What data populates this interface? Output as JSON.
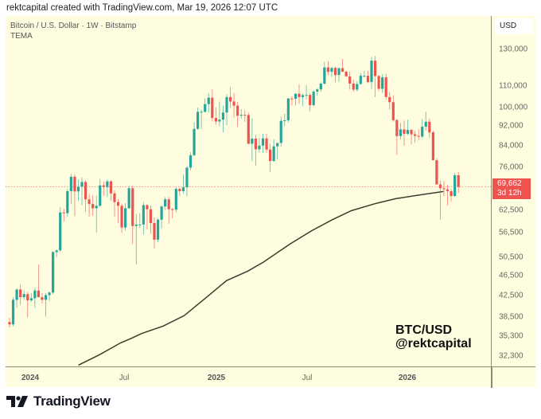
{
  "header": {
    "text": "rektcapital created with TradingView.com, Mar 19, 2026 12:07 UTC"
  },
  "legend": {
    "symbol_line": "Bitcoin / U.S. Dollar · 1W · Bitstamp",
    "indicator": "TEMA"
  },
  "axis": {
    "currency": "USD",
    "y_ticks": [
      "130,000",
      "110,000",
      "100,000",
      "92,000",
      "84,000",
      "76,000",
      "62,500",
      "56,500",
      "50,500",
      "46,500",
      "42,500",
      "38,500",
      "35,300",
      "32,300"
    ],
    "x_ticks": [
      {
        "label": "2024",
        "major": true
      },
      {
        "label": "Jul",
        "major": false
      },
      {
        "label": "2025",
        "major": true
      },
      {
        "label": "Jul",
        "major": false
      },
      {
        "label": "2026",
        "major": true
      }
    ]
  },
  "last_price": {
    "value": "69,662",
    "countdown": "3d 12h"
  },
  "watermark": {
    "line1": "BTC/USD",
    "line2": "@rektcapital"
  },
  "brand": {
    "name": "TradingView"
  },
  "colors": {
    "up": "#26a69a",
    "down": "#ef5350",
    "background": "#fffde0",
    "tema": "#3b3b2e",
    "last_price_line": "#ef5350"
  },
  "chart_data": {
    "type": "candlestick",
    "title": "Bitcoin / U.S. Dollar · 1W · Bitstamp",
    "xlabel": "",
    "ylabel": "USD",
    "y_scale": "log",
    "ylim": [
      31000,
      140000
    ],
    "x_range": [
      "2023-12",
      "2026-03"
    ],
    "legend": [
      "TEMA"
    ],
    "grid": false,
    "last_price": 69662,
    "candles_ohlc": [
      [
        37700,
        38400,
        36800,
        37300
      ],
      [
        37300,
        42200,
        37000,
        41700
      ],
      [
        41700,
        43900,
        40200,
        43700
      ],
      [
        43700,
        44700,
        40800,
        42200
      ],
      [
        42200,
        43500,
        41700,
        42800
      ],
      [
        42800,
        43200,
        38500,
        41600
      ],
      [
        41600,
        43000,
        41300,
        42000
      ],
      [
        42000,
        44000,
        40200,
        43500
      ],
      [
        43500,
        48900,
        42300,
        42200
      ],
      [
        42200,
        43000,
        41000,
        41700
      ],
      [
        41700,
        43000,
        38600,
        42600
      ],
      [
        42600,
        43300,
        41500,
        43100
      ],
      [
        43100,
        52000,
        42800,
        51800
      ],
      [
        51800,
        52400,
        50600,
        52200
      ],
      [
        52200,
        63500,
        51900,
        62000
      ],
      [
        62000,
        63000,
        59500,
        61800
      ],
      [
        61800,
        69000,
        60800,
        68300
      ],
      [
        68300,
        73800,
        64500,
        72900
      ],
      [
        72900,
        73700,
        61000,
        68200
      ],
      [
        68200,
        72000,
        65300,
        69700
      ],
      [
        69700,
        72700,
        64000,
        71200
      ],
      [
        71200,
        71800,
        62200,
        65800
      ],
      [
        65800,
        67500,
        60800,
        64400
      ],
      [
        64400,
        67000,
        61100,
        63200
      ],
      [
        63200,
        67000,
        56600,
        63900
      ],
      [
        63900,
        72200,
        63600,
        70100
      ],
      [
        70100,
        71400,
        66800,
        69600
      ],
      [
        69600,
        72000,
        66500,
        71400
      ],
      [
        71400,
        71800,
        65400,
        67600
      ],
      [
        67600,
        68600,
        60900,
        65000
      ],
      [
        65000,
        65900,
        59000,
        63900
      ],
      [
        63900,
        64500,
        56500,
        57900
      ],
      [
        57900,
        64700,
        57100,
        63200
      ],
      [
        63200,
        70000,
        63000,
        69200
      ],
      [
        69200,
        70000,
        53700,
        58300
      ],
      [
        58300,
        61600,
        49000,
        58700
      ],
      [
        58700,
        61800,
        57800,
        58700
      ],
      [
        58700,
        65000,
        56100,
        64100
      ],
      [
        64100,
        64400,
        57400,
        62900
      ],
      [
        62900,
        64000,
        56300,
        59100
      ],
      [
        59100,
        60600,
        52600,
        54800
      ],
      [
        54800,
        60400,
        54100,
        60000
      ],
      [
        60000,
        64100,
        57600,
        63700
      ],
      [
        63700,
        66500,
        62700,
        65800
      ],
      [
        65800,
        66500,
        58900,
        62900
      ],
      [
        62900,
        63300,
        60400,
        62800
      ],
      [
        62800,
        69500,
        62000,
        69000
      ],
      [
        69000,
        69400,
        66800,
        68300
      ],
      [
        68300,
        73600,
        67500,
        69500
      ],
      [
        69500,
        76500,
        66800,
        76000
      ],
      [
        76000,
        81500,
        75000,
        80400
      ],
      [
        80400,
        93400,
        80100,
        90600
      ],
      [
        90600,
        99800,
        90400,
        97900
      ],
      [
        97900,
        98900,
        90700,
        97900
      ],
      [
        97900,
        104100,
        97700,
        101400
      ],
      [
        101400,
        106500,
        97600,
        104400
      ],
      [
        104400,
        108300,
        93800,
        95200
      ],
      [
        95200,
        99900,
        92300,
        93700
      ],
      [
        93700,
        102600,
        91800,
        94500
      ],
      [
        94500,
        100700,
        89200,
        97600
      ],
      [
        97600,
        106000,
        92200,
        104700
      ],
      [
        104700,
        109600,
        99600,
        102600
      ],
      [
        102600,
        106700,
        95400,
        100700
      ],
      [
        100700,
        102400,
        91400,
        96200
      ],
      [
        96200,
        99100,
        94900,
        96600
      ],
      [
        96600,
        98700,
        93600,
        96500
      ],
      [
        96500,
        97600,
        84500,
        84700
      ],
      [
        84700,
        95000,
        78200,
        86700
      ],
      [
        86700,
        88200,
        76700,
        82600
      ],
      [
        82600,
        87000,
        81400,
        84000
      ],
      [
        84000,
        88600,
        81300,
        86800
      ],
      [
        86800,
        88700,
        81200,
        82500
      ],
      [
        82500,
        84700,
        74500,
        78300
      ],
      [
        78300,
        86400,
        78100,
        83700
      ],
      [
        83700,
        85000,
        79000,
        85000
      ],
      [
        85000,
        95800,
        83600,
        94000
      ],
      [
        94000,
        97000,
        91800,
        94200
      ],
      [
        94200,
        104300,
        93300,
        104000
      ],
      [
        104000,
        105000,
        100700,
        103900
      ],
      [
        103900,
        106500,
        100700,
        106300
      ],
      [
        106300,
        110900,
        101600,
        104700
      ],
      [
        104700,
        106300,
        100400,
        105600
      ],
      [
        105600,
        110400,
        103700,
        105700
      ],
      [
        105700,
        106500,
        98200,
        100900
      ],
      [
        100900,
        108200,
        100400,
        107300
      ],
      [
        107300,
        109000,
        105300,
        108400
      ],
      [
        108400,
        112000,
        107300,
        111300
      ],
      [
        111300,
        123000,
        110700,
        119800
      ],
      [
        119800,
        123200,
        115700,
        117400
      ],
      [
        117400,
        120000,
        114700,
        119500
      ],
      [
        119500,
        120200,
        111900,
        115700
      ],
      [
        115700,
        119800,
        112200,
        119400
      ],
      [
        119400,
        124500,
        117200,
        117500
      ],
      [
        117500,
        118000,
        114700,
        115000
      ],
      [
        115000,
        117600,
        108300,
        111300
      ],
      [
        111300,
        113400,
        107300,
        108300
      ],
      [
        108300,
        112600,
        107400,
        111100
      ],
      [
        111100,
        116800,
        110600,
        115300
      ],
      [
        115300,
        117900,
        114600,
        115300
      ],
      [
        115300,
        118000,
        111500,
        112100
      ],
      [
        112100,
        125600,
        108700,
        123500
      ],
      [
        123500,
        126200,
        104700,
        115200
      ],
      [
        115200,
        115800,
        107500,
        108700
      ],
      [
        108700,
        116100,
        106700,
        114500
      ],
      [
        114500,
        116400,
        103500,
        104700
      ],
      [
        104700,
        107200,
        98900,
        102300
      ],
      [
        102300,
        105500,
        93600,
        94300
      ],
      [
        94300,
        94900,
        80500,
        87700
      ],
      [
        87700,
        93100,
        86300,
        90400
      ],
      [
        90400,
        94100,
        84000,
        88600
      ],
      [
        88600,
        94500,
        88000,
        90200
      ],
      [
        90200,
        90600,
        84500,
        88400
      ],
      [
        88400,
        89800,
        85100,
        87800
      ],
      [
        87800,
        90500,
        86100,
        87500
      ],
      [
        87500,
        94800,
        86900,
        91500
      ],
      [
        91500,
        97900,
        90000,
        93600
      ],
      [
        93600,
        95000,
        86900,
        89200
      ],
      [
        89200,
        89900,
        81000,
        78600
      ],
      [
        78600,
        79300,
        74500,
        70400
      ],
      [
        70400,
        71600,
        60000,
        69200
      ],
      [
        69200,
        71500,
        66800,
        68900
      ],
      [
        68900,
        70300,
        64000,
        68300
      ],
      [
        68300,
        69000,
        65200,
        66800
      ],
      [
        66800,
        74200,
        66600,
        73400
      ],
      [
        73400,
        74600,
        67800,
        69662
      ]
    ],
    "tema_series_approx": [
      [
        0,
        31000
      ],
      [
        20,
        32500
      ],
      [
        40,
        34300
      ],
      [
        50,
        35000
      ],
      [
        60,
        35800
      ],
      [
        80,
        37000
      ],
      [
        100,
        38800
      ],
      [
        120,
        42000
      ],
      [
        140,
        45500
      ],
      [
        160,
        47500
      ],
      [
        175,
        49500
      ],
      [
        200,
        53700
      ],
      [
        220,
        57000
      ],
      [
        240,
        60000
      ],
      [
        258,
        62500
      ],
      [
        280,
        64500
      ],
      [
        300,
        66000
      ],
      [
        320,
        67000
      ],
      [
        345,
        68200
      ]
    ]
  }
}
